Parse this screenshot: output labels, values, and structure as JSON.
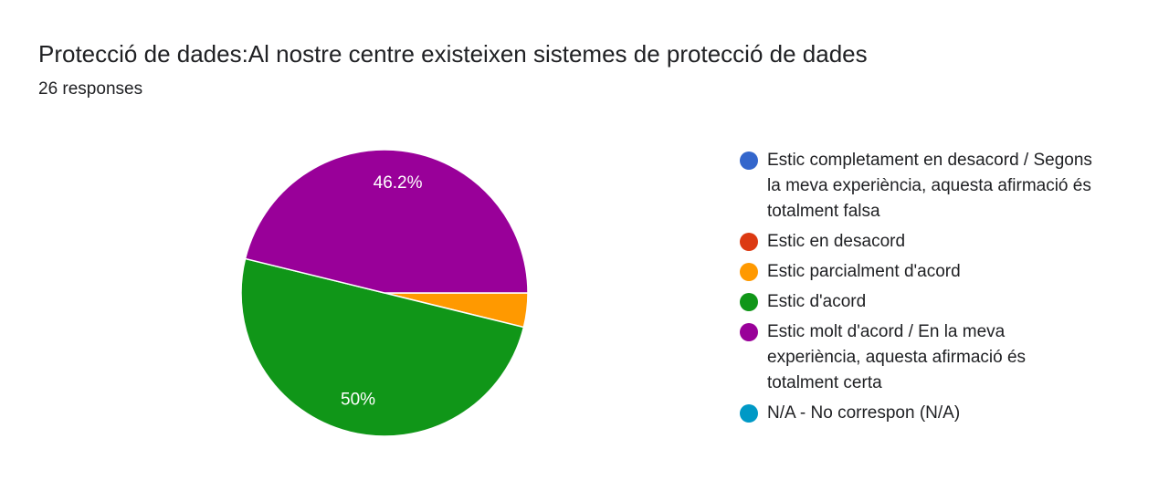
{
  "header": {
    "title": "Protecció de dades:Al nostre centre existeixen sistemes de protecció de dades",
    "responses": "26 responses"
  },
  "chart_data": {
    "type": "pie",
    "title": "Protecció de dades:Al nostre centre existeixen sistemes de protecció de dades",
    "total_responses": 26,
    "legend_position": "right",
    "categories": [
      "Estic completament en desacord / Segons la meva experiència, aquesta afirmació és totalment falsa",
      "Estic en desacord",
      "Estic parcialment d'acord",
      "Estic d'acord",
      "Estic molt d'acord / En la meva experiència, aquesta afirmació és totalment certa",
      "N/A - No correspon (N/A)"
    ],
    "values": [
      0,
      0,
      1,
      13,
      12,
      0
    ],
    "percent_labels": [
      "",
      "",
      "",
      "50%",
      "46.2%",
      ""
    ],
    "colors": [
      "#3366cc",
      "#dc3912",
      "#ff9900",
      "#109618",
      "#990099",
      "#0099c6"
    ]
  }
}
